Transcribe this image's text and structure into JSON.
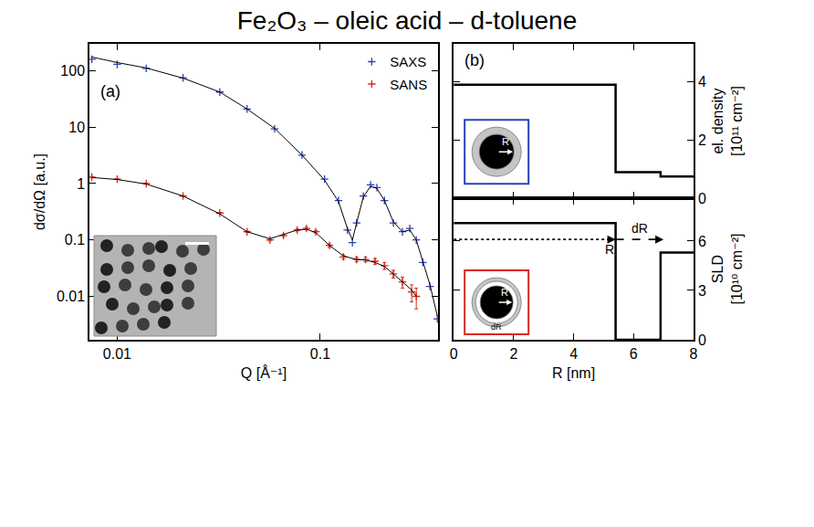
{
  "title": "Fe₂O₃ – oleic acid – d-toluene",
  "chart_data": [
    {
      "type": "scatter",
      "panel": "(a)",
      "x_label": "Q [Å⁻¹]",
      "y_label": "dσ/dΩ [a.u.]",
      "log": true,
      "xlim": [
        0.0073,
        0.38
      ],
      "xticks": [
        0.01,
        0.1
      ],
      "ylim": [
        0.0017,
        300
      ],
      "yticks": [
        0.01,
        0.1,
        1,
        10,
        100
      ],
      "legend": "upper right",
      "marker": "cross",
      "series": [
        {
          "name": "SAXS",
          "color": "#2b3fb8",
          "x": [
            0.0075,
            0.01,
            0.0139,
            0.0211,
            0.032,
            0.0436,
            0.0596,
            0.0813,
            0.105,
            0.123,
            0.136,
            0.144,
            0.151,
            0.163,
            0.177,
            0.19,
            0.207,
            0.229,
            0.254,
            0.276,
            0.297,
            0.32,
            0.347,
            0.377
          ],
          "values": [
            160,
            130,
            110,
            75,
            42,
            21,
            9.3,
            3.2,
            1.2,
            0.5,
            0.15,
            0.09,
            0.2,
            0.6,
            0.95,
            0.85,
            0.5,
            0.2,
            0.14,
            0.16,
            0.1,
            0.04,
            0.015,
            0.004
          ],
          "fit": [
            175,
            140,
            112,
            74,
            42,
            21,
            9.5,
            3.2,
            1.15,
            0.48,
            0.16,
            0.1,
            0.2,
            0.58,
            0.9,
            0.82,
            0.5,
            0.21,
            0.14,
            0.15,
            0.1,
            0.042,
            0.016,
            0.0045
          ]
        },
        {
          "name": "SANS",
          "color": "#d42a20",
          "x": [
            0.0075,
            0.01,
            0.0139,
            0.0211,
            0.032,
            0.0436,
            0.0565,
            0.0659,
            0.077,
            0.0855,
            0.095,
            0.111,
            0.13,
            0.151,
            0.167,
            0.186,
            0.207,
            0.229,
            0.254,
            0.282,
            0.297
          ],
          "values": [
            1.3,
            1.2,
            1.0,
            0.6,
            0.3,
            0.14,
            0.1,
            0.12,
            0.15,
            0.16,
            0.14,
            0.08,
            0.05,
            0.045,
            0.045,
            0.042,
            0.035,
            0.025,
            0.018,
            0.012,
            0.01
          ],
          "error": [
            0.03,
            0.02,
            0.02,
            0.01,
            0.006,
            0.004,
            0.004,
            0.005,
            0.006,
            0.007,
            0.007,
            0.005,
            0.004,
            0.004,
            0.004,
            0.005,
            0.005,
            0.004,
            0.004,
            0.004,
            0.004
          ],
          "fit": [
            1.28,
            1.18,
            0.98,
            0.6,
            0.29,
            0.14,
            0.105,
            0.125,
            0.15,
            0.155,
            0.135,
            0.08,
            0.052,
            0.045,
            0.044,
            0.04,
            0.034,
            0.025,
            0.018,
            0.013,
            0.01
          ]
        }
      ]
    },
    {
      "type": "line",
      "panel": "(b)",
      "y_label": "el. density [10¹¹ cm⁻²]",
      "xlim": [
        0,
        8
      ],
      "xticks": [
        0,
        2,
        4,
        6,
        8
      ],
      "ylim": [
        0,
        5.3
      ],
      "yticks": [
        0,
        2,
        4
      ],
      "tick_labels": "y",
      "line_style": "step",
      "color": "#000000",
      "x": [
        0,
        5.4,
        6.9,
        8
      ],
      "values": [
        3.9,
        0.9,
        0.75,
        0.75
      ],
      "inset_labels": [
        "R"
      ]
    },
    {
      "type": "line",
      "x_label": "R [nm]",
      "y_label": "SLD [10¹⁰ cm⁻²]",
      "xlim": [
        0,
        8
      ],
      "xticks": [
        0,
        2,
        4,
        6,
        8
      ],
      "ylim": [
        0,
        8.6
      ],
      "yticks": [
        0,
        3,
        6
      ],
      "line_style": "step",
      "color": "#000000",
      "x": [
        0,
        5.4,
        6.9,
        8
      ],
      "values": [
        7.1,
        0,
        5.3,
        5.3
      ],
      "arrows": [
        {
          "label": "R",
          "from": 0,
          "to": 5.4,
          "y": 6.1
        },
        {
          "label": "dR",
          "from": 5.4,
          "to": 7.0,
          "y": 6.1
        }
      ],
      "inset_labels": [
        "R",
        "dR"
      ]
    }
  ]
}
